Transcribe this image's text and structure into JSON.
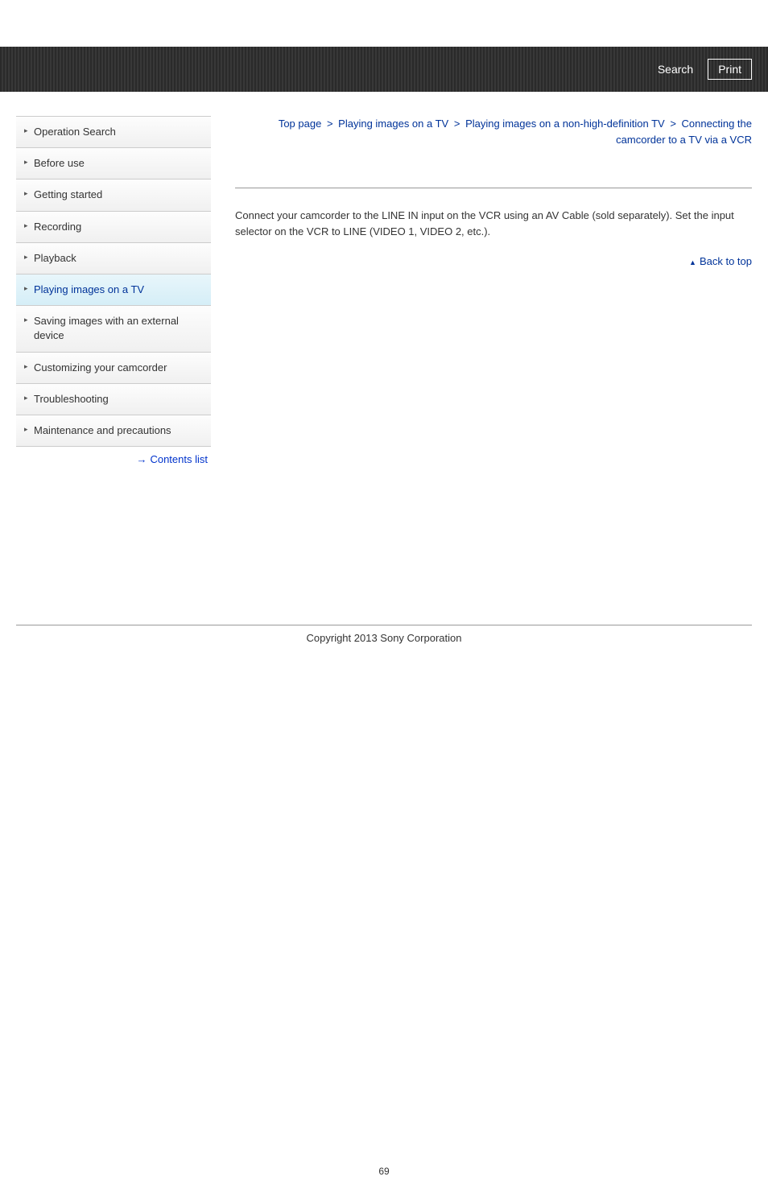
{
  "header": {
    "search_label": "Search",
    "print_label": "Print"
  },
  "sidebar": {
    "items": [
      {
        "label": "Operation Search",
        "active": false
      },
      {
        "label": "Before use",
        "active": false
      },
      {
        "label": "Getting started",
        "active": false
      },
      {
        "label": "Recording",
        "active": false
      },
      {
        "label": "Playback",
        "active": false
      },
      {
        "label": "Playing images on a TV",
        "active": true
      },
      {
        "label": "Saving images with an external device",
        "active": false
      },
      {
        "label": "Customizing your camcorder",
        "active": false
      },
      {
        "label": "Troubleshooting",
        "active": false
      },
      {
        "label": "Maintenance and precautions",
        "active": false
      }
    ],
    "contents_list_label": "Contents list"
  },
  "breadcrumb": {
    "parts": [
      "Top page",
      "Playing images on a TV",
      "Playing images on a non-high-definition TV",
      "Connecting the camcorder to a TV via a VCR"
    ],
    "separator": ">"
  },
  "main": {
    "body_text": "Connect your camcorder to the LINE IN input on the VCR using an AV Cable (sold separately). Set the input selector on the VCR to LINE (VIDEO 1, VIDEO 2, etc.).",
    "back_to_top_label": "Back to top"
  },
  "footer": {
    "copyright": "Copyright 2013 Sony Corporation",
    "page_number": "69"
  },
  "colors": {
    "link_color": "#003399",
    "text_color": "#333333",
    "header_bg": "#2e2e2e",
    "active_bg": "#d5eef7"
  }
}
